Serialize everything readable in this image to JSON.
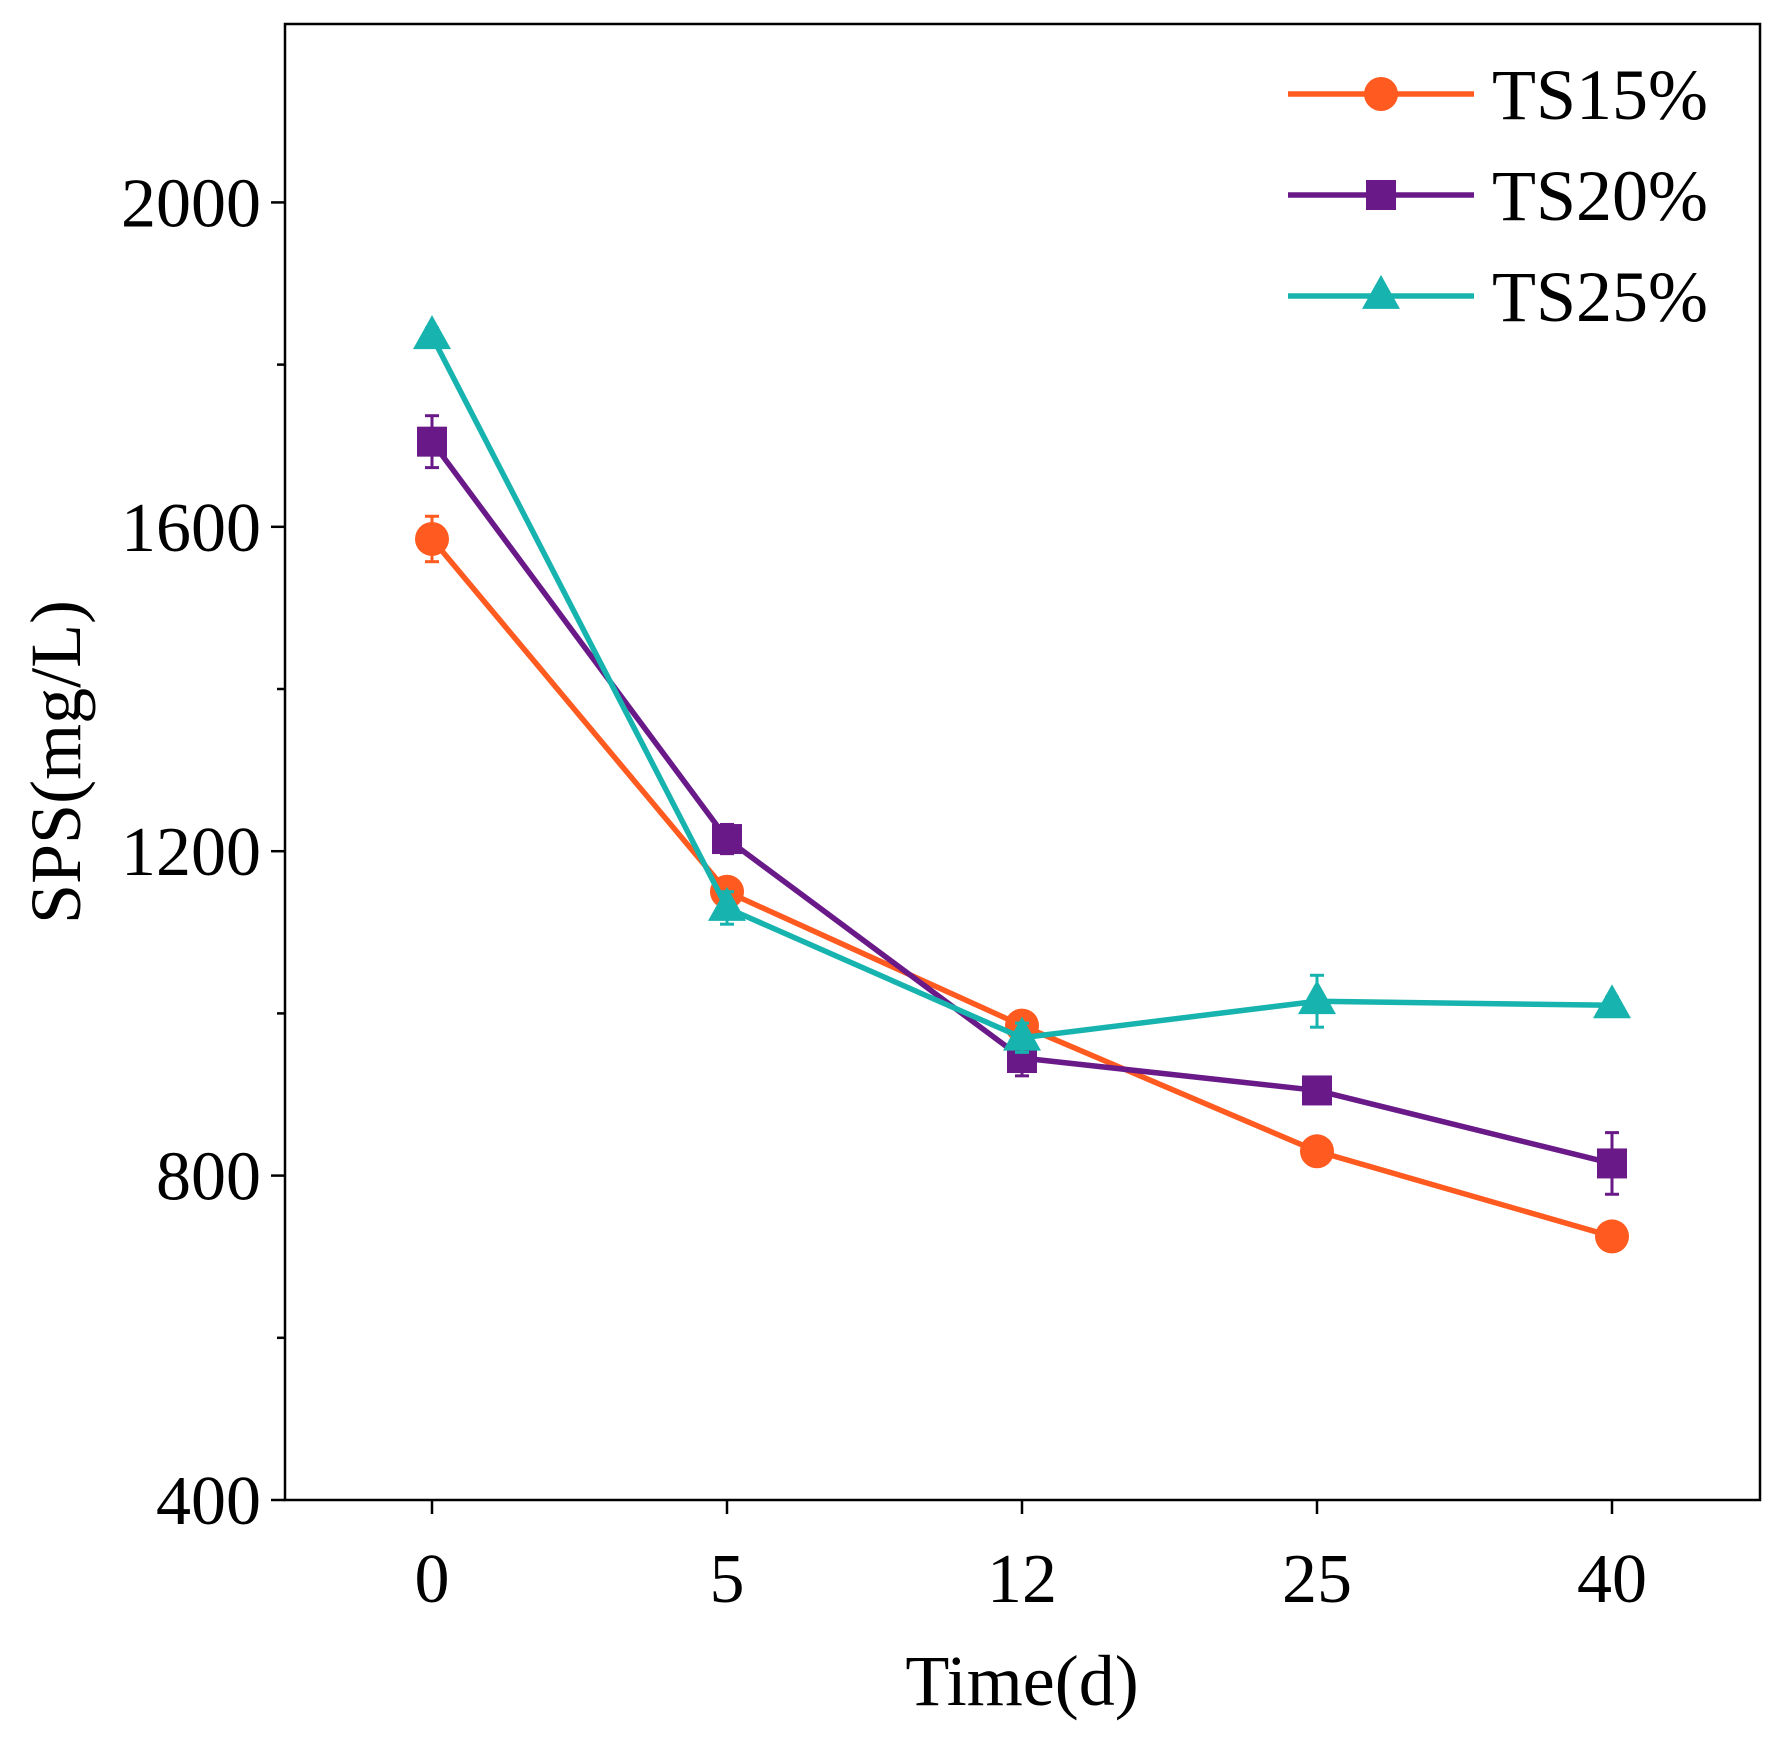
{
  "chart_data": {
    "type": "line",
    "title": "",
    "xlabel": "Time(d)",
    "ylabel": "SPS(mg/L)",
    "categories": [
      "0",
      "5",
      "12",
      "25",
      "40"
    ],
    "ylim": [
      400,
      2220
    ],
    "yticks": [
      400,
      800,
      1200,
      1600,
      2000
    ],
    "yticks_minor": [
      600,
      1000,
      1400,
      1800
    ],
    "legend_position": "top-right",
    "series": [
      {
        "name": "TS15%",
        "color": "#ff5a1f",
        "marker": "circle",
        "values": [
          1585,
          1150,
          985,
          830,
          725
        ],
        "errors": [
          28,
          15,
          12,
          12,
          12
        ]
      },
      {
        "name": "TS20%",
        "color": "#6a1a88",
        "marker": "square",
        "values": [
          1705,
          1215,
          945,
          905,
          815
        ],
        "errors": [
          32,
          18,
          22,
          15,
          38
        ]
      },
      {
        "name": "TS25%",
        "color": "#17b3ae",
        "marker": "triangle",
        "values": [
          1835,
          1130,
          970,
          1015,
          1010
        ],
        "errors": [
          10,
          20,
          18,
          32,
          10
        ]
      }
    ]
  }
}
